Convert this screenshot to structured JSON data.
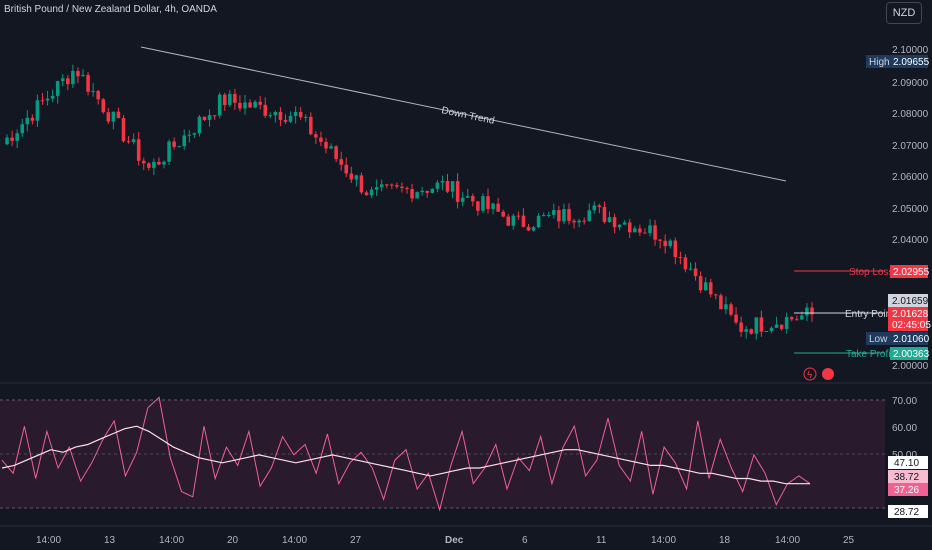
{
  "header": {
    "title": "British Pound / New Zealand Dollar, 4h, OANDA",
    "currency": "NZD"
  },
  "price_axis": {
    "ticks": [
      "2.10000",
      "2.09000",
      "2.08000",
      "2.07000",
      "2.06000",
      "2.05000",
      "2.04000",
      "2.00000"
    ]
  },
  "rsi_axis": {
    "ticks": [
      "70.00",
      "60.00",
      "50.00"
    ]
  },
  "time_axis": {
    "ticks": [
      "14:00",
      "13",
      "14:00",
      "20",
      "14:00",
      "27",
      "Dec",
      "6",
      "11",
      "14:00",
      "18",
      "14:00",
      "25"
    ]
  },
  "annotations": {
    "trendline_label": "Down Trend",
    "stop_loss": {
      "label": "Stop Loss",
      "value": "2.02955",
      "color": "#f23645"
    },
    "entry_point": {
      "label": "Entry Point",
      "value": "2.01659"
    },
    "take_profit": {
      "label": "Take Profit",
      "value": "2.00363",
      "color": "#22ab94"
    }
  },
  "price_badges": {
    "high_label": "High",
    "high_value": "2.09655",
    "low_label": "Low",
    "low_value": "2.01060",
    "last_value": "2.01628",
    "countdown": "02:45:05"
  },
  "rsi_badges": {
    "upper": "47.10",
    "mid": "38.72",
    "lower": "37.26",
    "bottom": "28.72"
  },
  "colors": {
    "up": "#089981",
    "down": "#f23645",
    "rsi": "#f06292",
    "rsi_ma": "#ffe0e8",
    "background": "#131722"
  },
  "chart_data": [
    {
      "type": "candlestick",
      "title": "British Pound / New Zealand Dollar, 4h, OANDA",
      "ylim": [
        2.0,
        2.1
      ],
      "key_points": [
        {
          "x": "start",
          "close": 2.07
        },
        {
          "x": "13",
          "close": 2.094
        },
        {
          "x": "14:00",
          "close": 2.062
        },
        {
          "x": "20",
          "close": 2.084
        },
        {
          "x": "27",
          "close": 2.079
        },
        {
          "x": "Dec",
          "close": 2.054
        },
        {
          "x": "6",
          "close": 2.057
        },
        {
          "x": "11",
          "close": 2.045
        },
        {
          "x": "14:00",
          "close": 2.049
        },
        {
          "x": "18",
          "close": 2.041
        },
        {
          "x": "14:00",
          "close": 2.012
        },
        {
          "x": "end",
          "close": 2.01628
        }
      ],
      "trendline": {
        "label": "Down Trend",
        "from": 2.1,
        "to": 2.059
      },
      "levels": {
        "stop_loss": 2.02955,
        "entry": 2.01659,
        "take_profit": 2.00363,
        "high": 2.09655,
        "low": 2.0106
      }
    },
    {
      "type": "line",
      "title": "RSI",
      "ylim": [
        28.72,
        70
      ],
      "series": [
        {
          "values": [
            47,
            42,
            60,
            40,
            58,
            44,
            52,
            39,
            46,
            55,
            62,
            41,
            50,
            67,
            71,
            48,
            35,
            33,
            60,
            40,
            52,
            45,
            58,
            37,
            44,
            56,
            49,
            53,
            42,
            57,
            38,
            46,
            50,
            44,
            32,
            47,
            51,
            36,
            42,
            28,
            45,
            58,
            38,
            44,
            53,
            36,
            48,
            43,
            56,
            38,
            52,
            60,
            41,
            47,
            63,
            45,
            39,
            58,
            34,
            52,
            46,
            36,
            62,
            40,
            55,
            44,
            35,
            49,
            42,
            30,
            38,
            41,
            38
          ]
        },
        {
          "values": [
            44,
            45,
            47,
            49,
            51,
            50,
            52,
            53,
            55,
            57,
            59,
            60,
            58,
            55,
            52,
            50,
            48,
            47,
            46,
            47,
            48,
            49,
            48,
            47,
            46,
            47,
            48,
            49,
            48,
            47,
            46,
            45,
            44,
            43,
            42,
            41,
            42,
            43,
            44,
            44,
            45,
            46,
            47,
            48,
            49,
            50,
            51,
            51,
            50,
            49,
            48,
            47,
            46,
            45,
            45,
            44,
            43,
            42,
            42,
            41,
            40,
            40,
            39,
            39,
            38,
            38,
            38
          ]
        }
      ]
    }
  ]
}
